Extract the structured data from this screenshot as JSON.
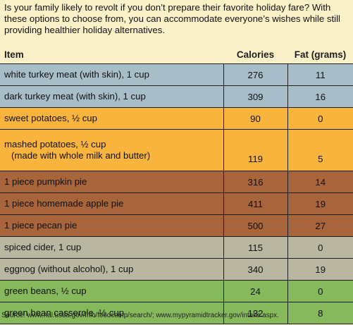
{
  "intro_text": "Is your family likely to revolt if you don’t prepare their favorite holiday fare? With these options to choose from, you can accommodate everyone’s wishes while still providing healthier holiday alternatives.",
  "table": {
    "headers": [
      "Item",
      "Calories",
      "Fat (grams)"
    ],
    "rows": [
      {
        "item": "white turkey meat (with skin), 1 cup",
        "item_line2": "",
        "calories": "276",
        "fat": "11",
        "color": "#a7bdc8"
      },
      {
        "item": "dark turkey meat (with skin), 1 cup",
        "item_line2": "",
        "calories": "309",
        "fat": "16",
        "color": "#a7bdc8"
      },
      {
        "item": "sweet potatoes, ½ cup",
        "item_line2": "",
        "calories": "90",
        "fat": "0",
        "color": "#f8b43c"
      },
      {
        "item": "mashed potatoes, ½ cup",
        "item_line2": "(made with whole milk and butter)",
        "calories": "119",
        "fat": "5",
        "color": "#f8b43c"
      },
      {
        "item": "1 piece pumpkin pie",
        "item_line2": "",
        "calories": "316",
        "fat": "14",
        "color": "#a8643a"
      },
      {
        "item": "1 piece homemade apple pie",
        "item_line2": "",
        "calories": "411",
        "fat": "19",
        "color": "#a8643a"
      },
      {
        "item": "1 piece pecan pie",
        "item_line2": "",
        "calories": "500",
        "fat": "27",
        "color": "#a8643a"
      },
      {
        "item": "spiced cider, 1 cup",
        "item_line2": "",
        "calories": "115",
        "fat": "0",
        "color": "#b9b6a1"
      },
      {
        "item": "eggnog (without alcohol), 1 cup",
        "item_line2": "",
        "calories": "340",
        "fat": "19",
        "color": "#b9b6a1"
      },
      {
        "item": "green beans, ½ cup",
        "item_line2": "",
        "calories": "24",
        "fat": "0",
        "color": "#86b85c"
      },
      {
        "item": "green bean casserole, ½ cup",
        "item_line2": "",
        "calories": "132",
        "fat": "8",
        "color": "#86b85c"
      }
    ]
  },
  "source_text": "Source: www.nal.usda.gov/fnic/foodcomp/search/; www.mypyramidtracker.gov/intake.aspx."
}
